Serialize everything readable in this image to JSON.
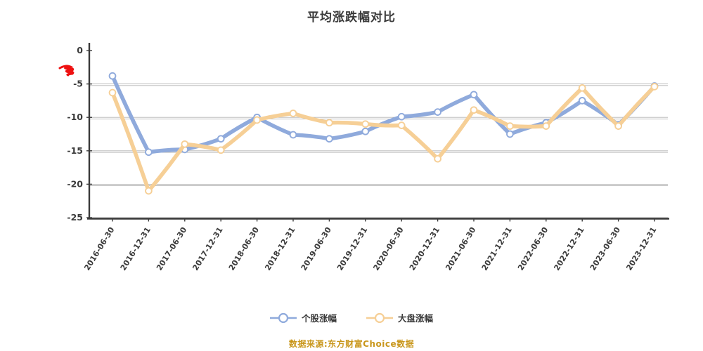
{
  "chart_data": {
    "type": "line",
    "title": "平均涨跌幅对比",
    "x": [
      "2016-06-30",
      "2016-12-31",
      "2017-06-30",
      "2017-12-31",
      "2018-06-30",
      "2018-12-31",
      "2019-06-30",
      "2019-12-31",
      "2020-06-30",
      "2020-12-31",
      "2021-06-30",
      "2021-12-31",
      "2022-06-30",
      "2022-12-31",
      "2023-06-30",
      "2023-12-31"
    ],
    "series": [
      {
        "name": "个股涨幅",
        "color": "#8faadc",
        "values": [
          -3.8,
          -15.2,
          -14.8,
          -13.2,
          -10.0,
          -12.6,
          -13.2,
          -12.1,
          -9.9,
          -9.2,
          -6.6,
          -12.5,
          -10.8,
          -7.5,
          -11.1,
          -5.3
        ]
      },
      {
        "name": "大盘涨幅",
        "color": "#f6cf96",
        "values": [
          -6.3,
          -21.0,
          -14.0,
          -14.9,
          -10.4,
          -9.4,
          -10.8,
          -11.0,
          -11.2,
          -16.2,
          -8.9,
          -11.3,
          -11.3,
          -5.6,
          -11.3,
          -5.4
        ]
      }
    ],
    "ylim": [
      -25,
      0
    ],
    "yticks": [
      0,
      -5,
      -10,
      -15,
      -20,
      -25
    ],
    "grid": true,
    "legend_position": "bottom"
  },
  "annotation": {
    "color": "#ee1111"
  },
  "footer": {
    "source_text": "数据来源:东方财富Choice数据",
    "color": "#c9971c"
  }
}
